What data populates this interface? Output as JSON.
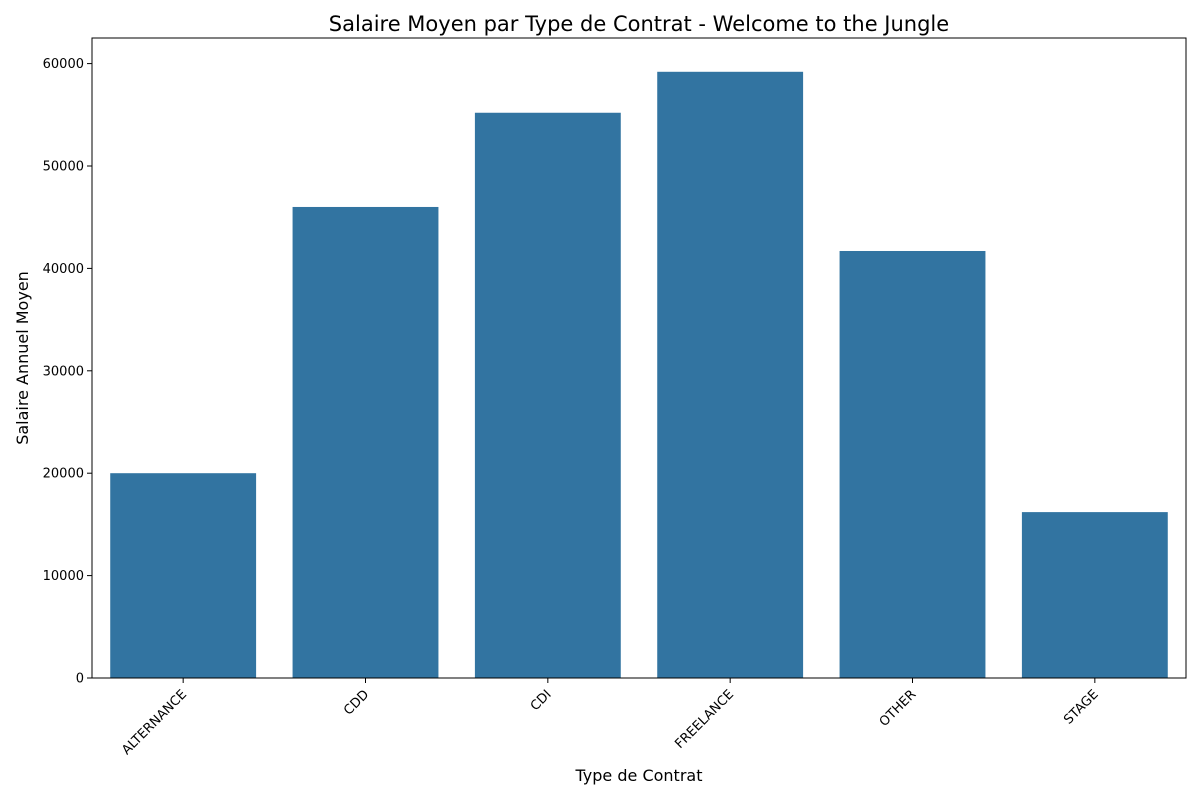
{
  "chart_data": {
    "type": "bar",
    "title": "Salaire Moyen par Type de Contrat - Welcome to the Jungle",
    "xlabel": "Type de Contrat",
    "ylabel": "Salaire Annuel Moyen",
    "categories": [
      "ALTERNANCE",
      "CDD",
      "CDI",
      "FREELANCE",
      "OTHER",
      "STAGE"
    ],
    "values": [
      20000,
      46000,
      55200,
      59200,
      41700,
      16200
    ],
    "ylim": [
      0,
      62500
    ],
    "yticks": [
      0,
      10000,
      20000,
      30000,
      40000,
      50000,
      60000
    ],
    "bar_color": "#3274a1",
    "grid": false,
    "legend": "none"
  }
}
